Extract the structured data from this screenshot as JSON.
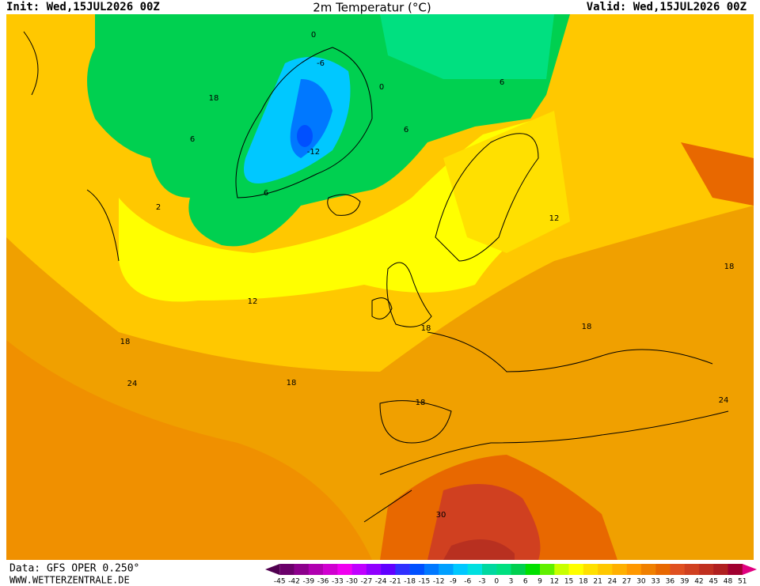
{
  "header": {
    "init": "Init: Wed,15JUL2026 00Z",
    "title": "2m Temperatur (°C)",
    "valid": "Valid: Wed,15JUL2026 00Z"
  },
  "footer": {
    "data_source": "Data: GFS OPER 0.250°",
    "website": "WWW.WETTERZENTRALE.DE"
  },
  "contour_labels": [
    -6,
    0,
    -12,
    0,
    18,
    6,
    6,
    6,
    6,
    2,
    12,
    12,
    18,
    18,
    18,
    24,
    18,
    18,
    18,
    24,
    30
  ],
  "colorbar": {
    "ticks": [
      -45,
      -42,
      -39,
      -36,
      -33,
      -30,
      -27,
      -24,
      -21,
      -18,
      -15,
      -12,
      -9,
      -6,
      -3,
      0,
      3,
      6,
      9,
      12,
      15,
      18,
      21,
      24,
      27,
      30,
      33,
      36,
      39,
      42,
      45,
      48,
      51
    ],
    "colors": [
      "#500050",
      "#6a006a",
      "#8c008c",
      "#b000b0",
      "#d000d0",
      "#f000f0",
      "#c000ff",
      "#9000ff",
      "#6000ff",
      "#3030ff",
      "#0050ff",
      "#0078ff",
      "#00a0ff",
      "#00c8ff",
      "#00e0e0",
      "#00d8a0",
      "#00e080",
      "#00d050",
      "#00e000",
      "#60f000",
      "#c8ff00",
      "#ffff00",
      "#ffe000",
      "#ffc800",
      "#ffb000",
      "#ff9800",
      "#f08000",
      "#e86800",
      "#e05020",
      "#d04020",
      "#c03020",
      "#b02020",
      "#a00030",
      "#e00080"
    ]
  }
}
